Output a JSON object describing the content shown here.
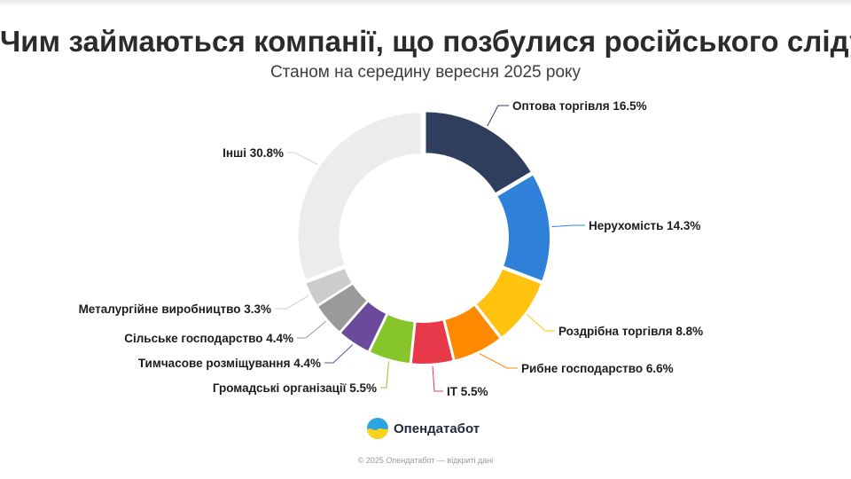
{
  "title": "Чим займаються компанії, що позбулися російського сліду",
  "subtitle": "Станом на середину вересня 2025 року",
  "brand": {
    "name": "Опендатабот"
  },
  "footer": "© 2025 Опендатабот — відкриті дані",
  "chart_data": {
    "type": "pie",
    "style": "donut",
    "title": "Чим займаються компанії, що позбулися російського сліду",
    "subtitle": "Станом на середину вересня 2025 року",
    "unit": "%",
    "slices": [
      {
        "label": "Оптова торгівля",
        "value": 16.5,
        "color": "#2f3e5c",
        "label_text": "Оптова торгівля 16.5%"
      },
      {
        "label": "Нерухомість",
        "value": 14.3,
        "color": "#2f80d9",
        "label_text": "Нерухомість 14.3%"
      },
      {
        "label": "Роздрібна торгівля",
        "value": 8.8,
        "color": "#ffc20e",
        "label_text": "Роздрібна торгівля 8.8%"
      },
      {
        "label": "Рибне господарство",
        "value": 6.6,
        "color": "#ff8a00",
        "label_text": "Рибне господарство 6.6%"
      },
      {
        "label": "IT",
        "value": 5.5,
        "color": "#e8394a",
        "label_text": "IT 5.5%"
      },
      {
        "label": "Громадські організації",
        "value": 5.5,
        "color": "#87c62b",
        "label_text": "Громадські організації 5.5%"
      },
      {
        "label": "Тимчасове розміщування",
        "value": 4.4,
        "color": "#6b4a9b",
        "label_text": "Тимчасове розміщування 4.4%"
      },
      {
        "label": "Сільське господарство",
        "value": 4.4,
        "color": "#9a9a9a",
        "label_text": "Сільське господарство 4.4%"
      },
      {
        "label": "Металургійне виробництво",
        "value": 3.3,
        "color": "#cccccc",
        "label_text": "Металургійне виробництво 3.3%"
      },
      {
        "label": "Інші",
        "value": 30.8,
        "color": "#ececec",
        "label_text": "Інші 30.8%"
      }
    ]
  }
}
